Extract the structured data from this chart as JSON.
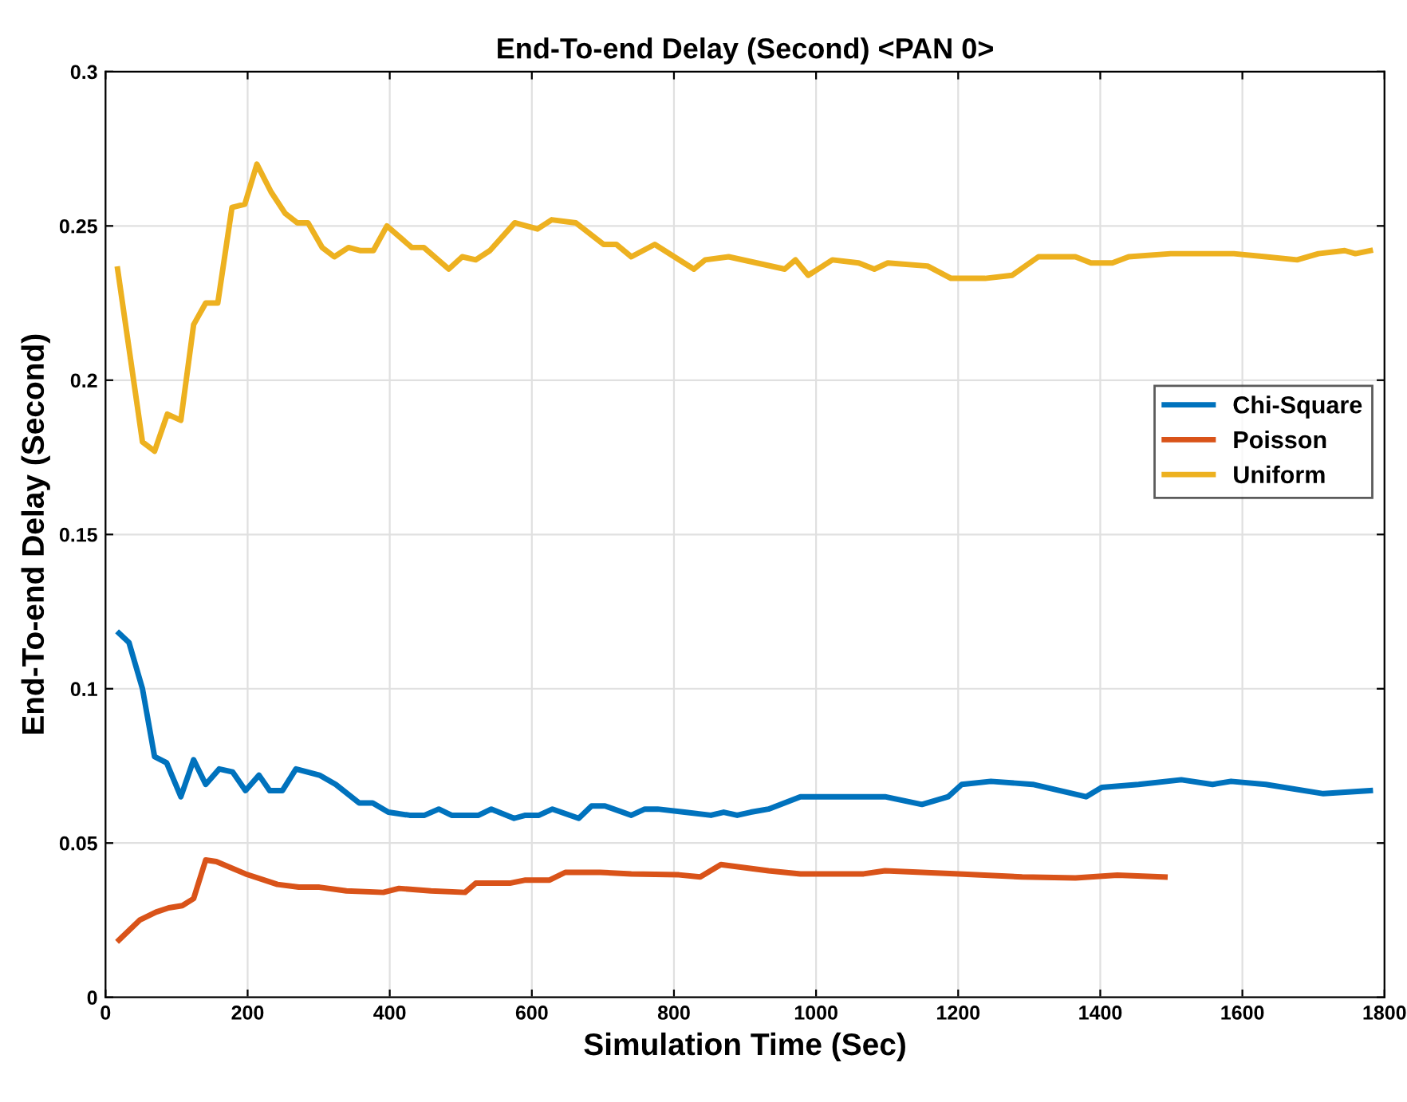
{
  "chart_data": {
    "type": "line",
    "title": "End-To-end Delay (Second) <PAN 0>",
    "xlabel": "Simulation Time (Sec)",
    "ylabel": "End-To-end Delay (Second)",
    "xlim": [
      0,
      1800
    ],
    "xticks": [
      0,
      200,
      400,
      600,
      800,
      1000,
      1200,
      1400,
      1600,
      1800
    ],
    "ylim": [
      0,
      0.3
    ],
    "yticks": [
      0,
      0.05,
      0.1,
      0.15,
      0.2,
      0.25,
      0.3
    ],
    "grid": true,
    "legend": "right",
    "marker": "none",
    "line_style": "solid",
    "series": [
      {
        "name": "Chi-Square",
        "color": "#0072bd",
        "x": [
          19,
          33,
          52,
          69,
          86,
          106,
          124,
          141,
          160,
          179,
          197,
          216,
          231,
          249,
          268,
          301,
          324,
          357,
          376,
          398,
          428,
          449,
          469,
          487,
          525,
          543,
          575,
          591,
          610,
          629,
          666,
          684,
          703,
          740,
          759,
          777,
          815,
          852,
          870,
          889,
          908,
          933,
          978,
          1097,
          1149,
          1186,
          1205,
          1246,
          1305,
          1380,
          1402,
          1454,
          1514,
          1558,
          1584,
          1633,
          1714,
          1780
        ],
        "values": [
          0.118,
          0.115,
          0.1,
          0.078,
          0.076,
          0.065,
          0.077,
          0.069,
          0.074,
          0.073,
          0.067,
          0.072,
          0.067,
          0.067,
          0.074,
          0.072,
          0.069,
          0.063,
          0.063,
          0.06,
          0.059,
          0.059,
          0.061,
          0.059,
          0.059,
          0.061,
          0.058,
          0.059,
          0.059,
          0.061,
          0.058,
          0.062,
          0.062,
          0.059,
          0.061,
          0.061,
          0.06,
          0.059,
          0.06,
          0.059,
          0.06,
          0.061,
          0.065,
          0.065,
          0.0625,
          0.065,
          0.069,
          0.07,
          0.069,
          0.065,
          0.068,
          0.069,
          0.0705,
          0.069,
          0.07,
          0.069,
          0.066,
          0.067
        ]
      },
      {
        "name": "Poisson",
        "color": "#d95319",
        "x": [
          19,
          48,
          71,
          89,
          108,
          124,
          141,
          156,
          197,
          242,
          272,
          301,
          339,
          391,
          413,
          458,
          506,
          521,
          569,
          591,
          625,
          647,
          696,
          740,
          807,
          837,
          866,
          933,
          978,
          1067,
          1097,
          1201,
          1290,
          1365,
          1424,
          1491
        ],
        "values": [
          0.0186,
          0.025,
          0.0276,
          0.029,
          0.0297,
          0.032,
          0.0445,
          0.044,
          0.04,
          0.0366,
          0.0357,
          0.0357,
          0.0345,
          0.034,
          0.0353,
          0.0345,
          0.034,
          0.037,
          0.037,
          0.038,
          0.038,
          0.0405,
          0.0405,
          0.04,
          0.0397,
          0.039,
          0.043,
          0.041,
          0.04,
          0.04,
          0.041,
          0.04,
          0.039,
          0.0387,
          0.0396,
          0.039
        ]
      },
      {
        "name": "Uniform",
        "color": "#edb120",
        "x": [
          17,
          52,
          69,
          87,
          106,
          124,
          141,
          158,
          178,
          196,
          213,
          233,
          253,
          270,
          285,
          305,
          322,
          342,
          359,
          377,
          396,
          431,
          448,
          483,
          502,
          521,
          541,
          576,
          608,
          628,
          662,
          701,
          719,
          740,
          773,
          828,
          844,
          877,
          956,
          971,
          989,
          1023,
          1060,
          1082,
          1101,
          1157,
          1190,
          1238,
          1276,
          1313,
          1365,
          1387,
          1417,
          1440,
          1499,
          1588,
          1633,
          1677,
          1707,
          1744,
          1759,
          1780
        ],
        "values": [
          0.236,
          0.18,
          0.177,
          0.189,
          0.187,
          0.218,
          0.225,
          0.225,
          0.256,
          0.257,
          0.27,
          0.261,
          0.254,
          0.251,
          0.251,
          0.243,
          0.24,
          0.243,
          0.242,
          0.242,
          0.25,
          0.243,
          0.243,
          0.236,
          0.24,
          0.239,
          0.242,
          0.251,
          0.249,
          0.252,
          0.251,
          0.244,
          0.244,
          0.24,
          0.244,
          0.236,
          0.239,
          0.24,
          0.236,
          0.239,
          0.234,
          0.239,
          0.238,
          0.236,
          0.238,
          0.237,
          0.233,
          0.233,
          0.234,
          0.24,
          0.24,
          0.238,
          0.238,
          0.24,
          0.241,
          0.241,
          0.24,
          0.239,
          0.241,
          0.242,
          0.241,
          0.242
        ]
      }
    ]
  }
}
